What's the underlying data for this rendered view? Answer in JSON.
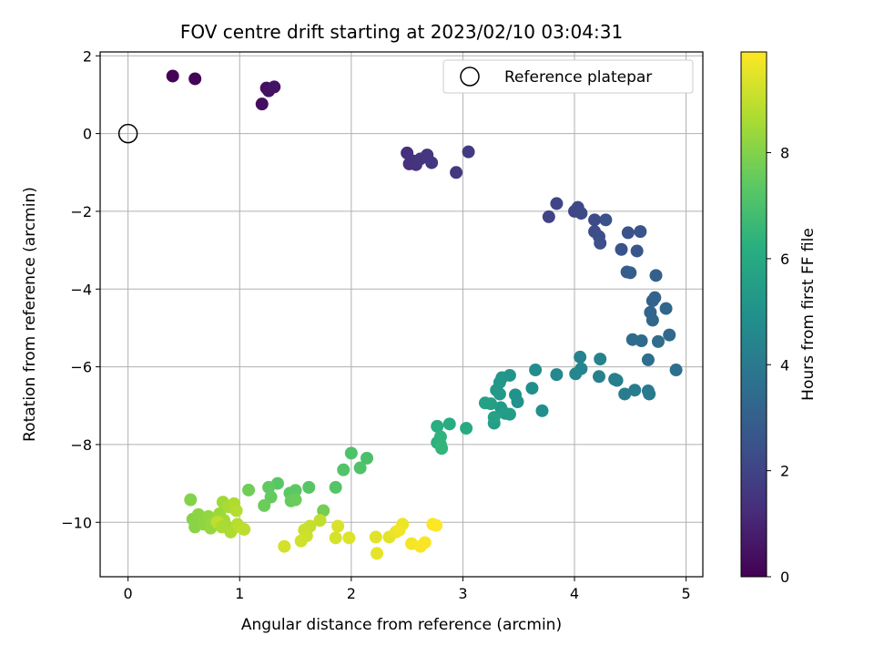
{
  "chart_data": {
    "type": "scatter",
    "title": "FOV centre drift starting at 2023/02/10 03:04:31",
    "xlabel": "Angular distance from reference (arcmin)",
    "ylabel": "Rotation from reference (arcmin)",
    "xlim": [
      -0.25,
      5.15
    ],
    "ylim": [
      -11.4,
      2.1
    ],
    "xticks": [
      0,
      1,
      2,
      3,
      4,
      5
    ],
    "yticks": [
      2,
      0,
      -2,
      -4,
      -6,
      -8,
      -10
    ],
    "grid": true,
    "legend": {
      "placement": "top-right",
      "label": "Reference platepar"
    },
    "reference_point": {
      "x": 0,
      "y": 0
    },
    "colorbar": {
      "label": "Hours from first FF file",
      "min": 0,
      "max": 9.9,
      "ticks": [
        0,
        2,
        4,
        6,
        8
      ],
      "colormap": "viridis"
    },
    "points": [
      {
        "x": 0.4,
        "y": 1.48,
        "h": 0.05
      },
      {
        "x": 0.6,
        "y": 1.41,
        "h": 0.1
      },
      {
        "x": 1.2,
        "y": 0.76,
        "h": 0.35
      },
      {
        "x": 1.24,
        "y": 1.17,
        "h": 0.4
      },
      {
        "x": 1.26,
        "y": 1.1,
        "h": 0.45
      },
      {
        "x": 1.31,
        "y": 1.2,
        "h": 0.5
      },
      {
        "x": 2.5,
        "y": -0.5,
        "h": 1.3
      },
      {
        "x": 2.52,
        "y": -0.78,
        "h": 1.35
      },
      {
        "x": 2.55,
        "y": -0.7,
        "h": 1.4
      },
      {
        "x": 2.58,
        "y": -0.8,
        "h": 1.45
      },
      {
        "x": 2.62,
        "y": -0.65,
        "h": 1.5
      },
      {
        "x": 2.68,
        "y": -0.55,
        "h": 1.55
      },
      {
        "x": 2.72,
        "y": -0.75,
        "h": 1.6
      },
      {
        "x": 2.94,
        "y": -1.0,
        "h": 1.65
      },
      {
        "x": 3.05,
        "y": -0.47,
        "h": 1.7
      },
      {
        "x": 3.77,
        "y": -2.14,
        "h": 2.0
      },
      {
        "x": 3.84,
        "y": -1.8,
        "h": 2.05
      },
      {
        "x": 4.0,
        "y": -2.0,
        "h": 2.1
      },
      {
        "x": 4.03,
        "y": -1.9,
        "h": 2.15
      },
      {
        "x": 4.06,
        "y": -2.05,
        "h": 2.2
      },
      {
        "x": 4.18,
        "y": -2.22,
        "h": 2.25
      },
      {
        "x": 4.18,
        "y": -2.52,
        "h": 2.3
      },
      {
        "x": 4.22,
        "y": -2.65,
        "h": 2.35
      },
      {
        "x": 4.23,
        "y": -2.82,
        "h": 2.4
      },
      {
        "x": 4.28,
        "y": -2.22,
        "h": 2.45
      },
      {
        "x": 4.42,
        "y": -2.98,
        "h": 2.5
      },
      {
        "x": 4.48,
        "y": -2.55,
        "h": 2.55
      },
      {
        "x": 4.59,
        "y": -2.52,
        "h": 2.6
      },
      {
        "x": 4.56,
        "y": -3.02,
        "h": 2.65
      },
      {
        "x": 4.47,
        "y": -3.56,
        "h": 2.9
      },
      {
        "x": 4.5,
        "y": -3.58,
        "h": 2.95
      },
      {
        "x": 4.73,
        "y": -3.65,
        "h": 3.0
      },
      {
        "x": 4.7,
        "y": -4.3,
        "h": 3.1
      },
      {
        "x": 4.72,
        "y": -4.22,
        "h": 3.15
      },
      {
        "x": 4.68,
        "y": -4.6,
        "h": 3.2
      },
      {
        "x": 4.7,
        "y": -4.8,
        "h": 3.25
      },
      {
        "x": 4.82,
        "y": -4.5,
        "h": 3.3
      },
      {
        "x": 4.85,
        "y": -5.18,
        "h": 3.35
      },
      {
        "x": 4.6,
        "y": -5.33,
        "h": 3.4
      },
      {
        "x": 4.52,
        "y": -5.3,
        "h": 3.45
      },
      {
        "x": 4.75,
        "y": -5.35,
        "h": 3.5
      },
      {
        "x": 4.66,
        "y": -5.82,
        "h": 3.55
      },
      {
        "x": 4.91,
        "y": -6.08,
        "h": 3.6
      },
      {
        "x": 4.66,
        "y": -6.62,
        "h": 4.0
      },
      {
        "x": 4.67,
        "y": -6.7,
        "h": 4.05
      },
      {
        "x": 4.54,
        "y": -6.6,
        "h": 4.1
      },
      {
        "x": 4.45,
        "y": -6.7,
        "h": 4.15
      },
      {
        "x": 4.36,
        "y": -6.32,
        "h": 4.2
      },
      {
        "x": 4.38,
        "y": -6.35,
        "h": 4.25
      },
      {
        "x": 4.22,
        "y": -6.25,
        "h": 4.3
      },
      {
        "x": 4.23,
        "y": -5.8,
        "h": 4.35
      },
      {
        "x": 4.05,
        "y": -5.75,
        "h": 4.4
      },
      {
        "x": 4.06,
        "y": -6.05,
        "h": 4.45
      },
      {
        "x": 4.01,
        "y": -6.18,
        "h": 4.5
      },
      {
        "x": 3.84,
        "y": -6.2,
        "h": 4.6
      },
      {
        "x": 3.65,
        "y": -6.08,
        "h": 4.8
      },
      {
        "x": 3.62,
        "y": -6.55,
        "h": 4.85
      },
      {
        "x": 3.71,
        "y": -7.13,
        "h": 4.9
      },
      {
        "x": 3.49,
        "y": -6.9,
        "h": 5.0
      },
      {
        "x": 3.47,
        "y": -6.72,
        "h": 5.05
      },
      {
        "x": 3.42,
        "y": -6.22,
        "h": 5.1
      },
      {
        "x": 3.35,
        "y": -6.28,
        "h": 5.15
      },
      {
        "x": 3.33,
        "y": -6.4,
        "h": 5.2
      },
      {
        "x": 3.3,
        "y": -6.6,
        "h": 5.25
      },
      {
        "x": 3.33,
        "y": -6.7,
        "h": 5.3
      },
      {
        "x": 3.34,
        "y": -7.05,
        "h": 5.35
      },
      {
        "x": 3.38,
        "y": -7.2,
        "h": 5.4
      },
      {
        "x": 3.42,
        "y": -7.22,
        "h": 5.45
      },
      {
        "x": 3.28,
        "y": -7.45,
        "h": 5.5
      },
      {
        "x": 3.25,
        "y": -6.95,
        "h": 5.55
      },
      {
        "x": 3.2,
        "y": -6.93,
        "h": 5.6
      },
      {
        "x": 3.28,
        "y": -7.3,
        "h": 5.65
      },
      {
        "x": 3.03,
        "y": -7.58,
        "h": 6.0
      },
      {
        "x": 2.88,
        "y": -7.47,
        "h": 6.1
      },
      {
        "x": 2.77,
        "y": -7.53,
        "h": 6.2
      },
      {
        "x": 2.77,
        "y": -7.95,
        "h": 6.3
      },
      {
        "x": 2.8,
        "y": -7.8,
        "h": 6.35
      },
      {
        "x": 2.8,
        "y": -8.0,
        "h": 6.4
      },
      {
        "x": 2.81,
        "y": -8.1,
        "h": 6.45
      },
      {
        "x": 2.14,
        "y": -8.35,
        "h": 7.0
      },
      {
        "x": 2.0,
        "y": -8.22,
        "h": 7.05
      },
      {
        "x": 2.08,
        "y": -8.6,
        "h": 7.1
      },
      {
        "x": 1.93,
        "y": -8.65,
        "h": 7.15
      },
      {
        "x": 1.86,
        "y": -9.1,
        "h": 7.2
      },
      {
        "x": 1.62,
        "y": -9.1,
        "h": 7.25
      },
      {
        "x": 1.34,
        "y": -9.0,
        "h": 7.3
      },
      {
        "x": 1.45,
        "y": -9.25,
        "h": 7.35
      },
      {
        "x": 1.5,
        "y": -9.18,
        "h": 7.4
      },
      {
        "x": 1.26,
        "y": -9.1,
        "h": 7.45
      },
      {
        "x": 1.28,
        "y": -9.35,
        "h": 7.5
      },
      {
        "x": 1.46,
        "y": -9.45,
        "h": 7.55
      },
      {
        "x": 1.5,
        "y": -9.42,
        "h": 7.6
      },
      {
        "x": 1.22,
        "y": -9.57,
        "h": 7.65
      },
      {
        "x": 1.08,
        "y": -9.17,
        "h": 7.7
      },
      {
        "x": 1.75,
        "y": -9.7,
        "h": 7.75
      },
      {
        "x": 0.56,
        "y": -9.42,
        "h": 8.0
      },
      {
        "x": 0.58,
        "y": -9.92,
        "h": 8.05
      },
      {
        "x": 0.6,
        "y": -10.12,
        "h": 8.1
      },
      {
        "x": 0.63,
        "y": -9.8,
        "h": 8.15
      },
      {
        "x": 0.68,
        "y": -10.05,
        "h": 8.2
      },
      {
        "x": 0.72,
        "y": -9.85,
        "h": 8.25
      },
      {
        "x": 0.74,
        "y": -10.15,
        "h": 8.3
      },
      {
        "x": 0.78,
        "y": -9.98,
        "h": 8.35
      },
      {
        "x": 0.82,
        "y": -9.78,
        "h": 8.4
      },
      {
        "x": 0.85,
        "y": -9.48,
        "h": 8.45
      },
      {
        "x": 0.86,
        "y": -9.95,
        "h": 8.5
      },
      {
        "x": 0.88,
        "y": -10.1,
        "h": 8.55
      },
      {
        "x": 0.9,
        "y": -9.6,
        "h": 8.6
      },
      {
        "x": 0.92,
        "y": -10.25,
        "h": 8.65
      },
      {
        "x": 0.95,
        "y": -9.52,
        "h": 8.7
      },
      {
        "x": 0.97,
        "y": -9.7,
        "h": 8.75
      },
      {
        "x": 0.98,
        "y": -10.05,
        "h": 8.8
      },
      {
        "x": 1.0,
        "y": -10.12,
        "h": 8.85
      },
      {
        "x": 1.04,
        "y": -10.18,
        "h": 8.9
      },
      {
        "x": 0.8,
        "y": -10.0,
        "h": 8.95
      },
      {
        "x": 0.84,
        "y": -10.12,
        "h": 8.6
      },
      {
        "x": 1.72,
        "y": -9.95,
        "h": 9.0
      },
      {
        "x": 1.63,
        "y": -10.1,
        "h": 9.05
      },
      {
        "x": 1.58,
        "y": -10.2,
        "h": 9.1
      },
      {
        "x": 1.6,
        "y": -10.35,
        "h": 9.15
      },
      {
        "x": 1.55,
        "y": -10.48,
        "h": 9.2
      },
      {
        "x": 1.4,
        "y": -10.62,
        "h": 9.25
      },
      {
        "x": 1.86,
        "y": -10.4,
        "h": 9.3
      },
      {
        "x": 1.88,
        "y": -10.1,
        "h": 9.35
      },
      {
        "x": 1.98,
        "y": -10.4,
        "h": 9.4
      },
      {
        "x": 2.22,
        "y": -10.38,
        "h": 9.45
      },
      {
        "x": 2.34,
        "y": -10.38,
        "h": 9.5
      },
      {
        "x": 2.23,
        "y": -10.8,
        "h": 9.55
      },
      {
        "x": 2.4,
        "y": -10.25,
        "h": 9.6
      },
      {
        "x": 2.46,
        "y": -10.05,
        "h": 9.65
      },
      {
        "x": 2.43,
        "y": -10.2,
        "h": 9.7
      },
      {
        "x": 2.54,
        "y": -10.55,
        "h": 9.75
      },
      {
        "x": 2.62,
        "y": -10.62,
        "h": 9.8
      },
      {
        "x": 2.66,
        "y": -10.52,
        "h": 9.82
      },
      {
        "x": 2.73,
        "y": -10.05,
        "h": 9.85
      },
      {
        "x": 2.76,
        "y": -10.08,
        "h": 9.88
      }
    ]
  }
}
